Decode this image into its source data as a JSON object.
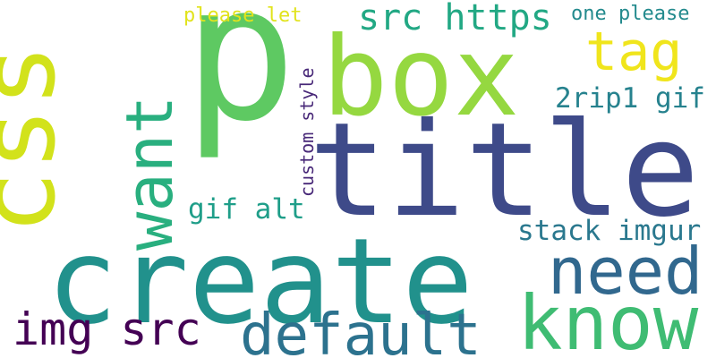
{
  "words": [
    {
      "text": "p",
      "color": "#5ec962"
    },
    {
      "text": "box",
      "color": "#95d840"
    },
    {
      "text": "title",
      "color": "#3e4a89"
    },
    {
      "text": "create",
      "color": "#21918c"
    },
    {
      "text": "css",
      "color": "#d2e21b"
    },
    {
      "text": "want",
      "color": "#29af7f"
    },
    {
      "text": "tag",
      "color": "#f0e51c"
    },
    {
      "text": "know",
      "color": "#3fbc73"
    },
    {
      "text": "need",
      "color": "#31688e"
    },
    {
      "text": "default",
      "color": "#2c728e"
    },
    {
      "text": "img src",
      "color": "#440154"
    },
    {
      "text": "src https",
      "color": "#22a884"
    },
    {
      "text": "2rip1 gif",
      "color": "#26828e"
    },
    {
      "text": "stack imgur",
      "color": "#2a788e"
    },
    {
      "text": "gif alt",
      "color": "#1f9e89"
    },
    {
      "text": "one please",
      "color": "#238a8d"
    },
    {
      "text": "please let",
      "color": "#e1e31c"
    },
    {
      "text": "custom style",
      "color": "#482878"
    }
  ]
}
